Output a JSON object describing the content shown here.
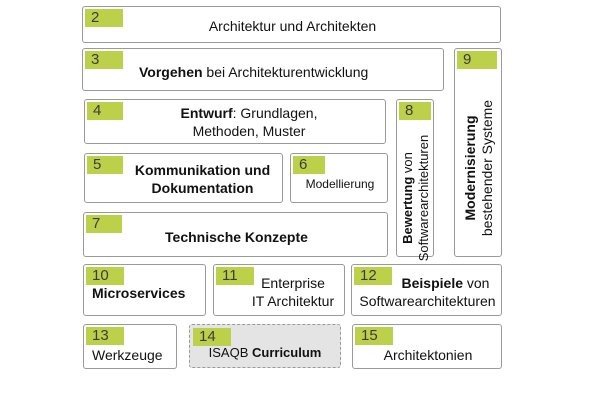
{
  "tiles": {
    "t2": {
      "num": "2",
      "text": "Architektur und Architekten"
    },
    "t3": {
      "num": "3",
      "bold": "Vorgehen",
      "rest": " bei Architekturentwicklung"
    },
    "t4": {
      "num": "4",
      "bold": "Entwurf",
      "rest": ": Grundlagen,",
      "line2": "Methoden, Muster"
    },
    "t5": {
      "num": "5",
      "line1": "Kommunikation und",
      "line2": "Dokumentation"
    },
    "t6": {
      "num": "6",
      "text": "Modellierung"
    },
    "t7": {
      "num": "7",
      "text": "Technische Konzepte"
    },
    "t8": {
      "num": "8",
      "bold": "Bewertung",
      "rest": " von",
      "line2": "Softwarearchitekturen"
    },
    "t9": {
      "num": "9",
      "bold": "Modernisierung",
      "line2": "bestehender Systeme"
    },
    "t10": {
      "num": "10",
      "text": "Microservices"
    },
    "t11": {
      "num": "11",
      "line1": "Enterprise",
      "line2": "IT Architektur"
    },
    "t12": {
      "num": "12",
      "bold": "Beispiele",
      "rest": " von",
      "line2": "Softwarearchitekturen"
    },
    "t13": {
      "num": "13",
      "text": "Werkzeuge"
    },
    "t14": {
      "num": "14",
      "pre": "ISAQB ",
      "bold": "Curriculum"
    },
    "t15": {
      "num": "15",
      "text": "Architektonien"
    }
  }
}
